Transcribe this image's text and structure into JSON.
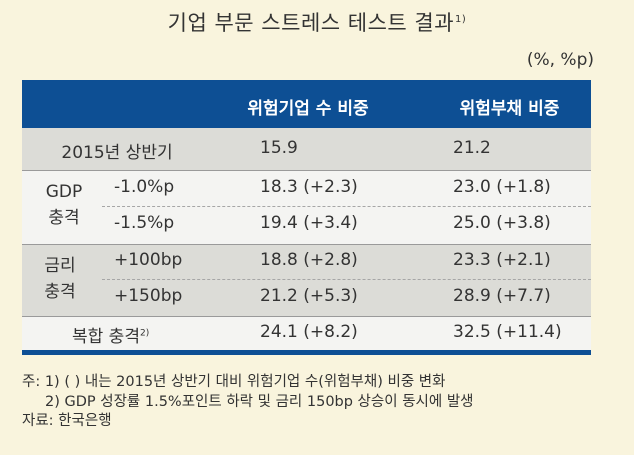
{
  "title": "기업 부문 스트레스 테스트 결과",
  "title_note": "1)",
  "unit": "(%, %p)",
  "headers": {
    "col1": "위험기업 수 비중",
    "col2": "위험부채 비중"
  },
  "rows": {
    "base": {
      "label": "2015년 상반기",
      "c1": "15.9",
      "c2": "21.2"
    },
    "gdp_group": "GDP\n충격",
    "gdp1": {
      "label": "-1.0%p",
      "c1": "18.3 (+2.3)",
      "c2": "23.0 (+1.8)"
    },
    "gdp2": {
      "label": "-1.5%p",
      "c1": "19.4 (+3.4)",
      "c2": "25.0 (+3.8)"
    },
    "rate_group": "금리\n충격",
    "rate1": {
      "label": "+100bp",
      "c1": "18.8 (+2.8)",
      "c2": "23.3 (+2.1)"
    },
    "rate2": {
      "label": "+150bp",
      "c1": "21.2 (+5.3)",
      "c2": "28.9 (+7.7)"
    },
    "combined": {
      "label": "복합 충격",
      "note": "2)",
      "c1": "24.1 (+8.2)",
      "c2": "32.5 (+11.4)"
    }
  },
  "notes": {
    "n1": "주: 1) (  ) 내는 2015년 상반기 대비 위험기업 수(위험부채) 비중 변화",
    "n2": "2) GDP 성장률 1.5%포인트 하락 및 금리 150bp 상승이 동시에 발생",
    "source": "자료: 한국은행"
  },
  "colors": {
    "header_bg": "#0d4f94",
    "page_bg": "#f9f4dd",
    "band_shade": "#dcdcd7",
    "band_white": "#f4f4f2"
  }
}
